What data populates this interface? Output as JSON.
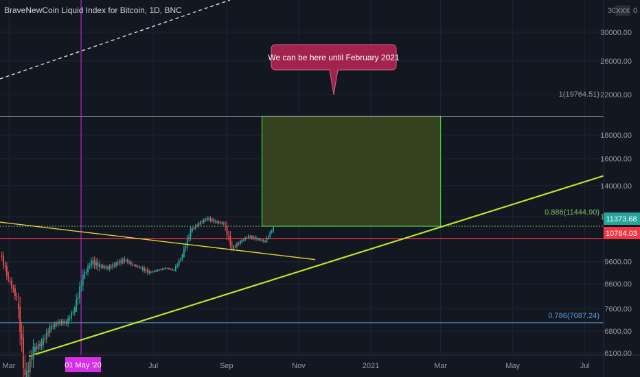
{
  "header": {
    "title": "BraveNewCoin Liquid Index for Bitcoin, 1D, BNC"
  },
  "price_axis": {
    "ticks": [
      "30000.00",
      "26000.00",
      "22000.00",
      "18000.00",
      "16000.00",
      "14000.00",
      "12000.00",
      "9600.00",
      "8600.00",
      "7600.00",
      "6800.00",
      "6100.00"
    ],
    "top_partial": "30",
    "xxx_badge": "XXX",
    "top_right_glyph": "0",
    "current_price": "11373.68",
    "support_price": "10764.03"
  },
  "time_axis": {
    "ticks": [
      "Mar",
      "Jul",
      "Sep",
      "Nov",
      "2021",
      "Mar",
      "May",
      "Jul"
    ],
    "cursor_label": "01 May '20"
  },
  "annotations": {
    "callout": "We can be here until February 2021",
    "fib_top": "1(19764.51)",
    "fib_886": "0.886(11444.90)",
    "fib_786": "0.786(7087.24)"
  },
  "colors": {
    "background": "#131722",
    "axis_bg": "#131722",
    "grid": "#1f2433",
    "up_candle": "#26a69a",
    "down_candle": "#ef5350",
    "trend_green": "#b6e82b",
    "trend_yellow": "#e6d43a",
    "box_fill": "#3c4a1f",
    "box_stroke": "#3ecf3a",
    "current_label_bg": "#26a69a",
    "support_label_bg": "#f23645",
    "fib_blue": "#5b9bd5",
    "fib_green": "#7cba66",
    "cursor": "#d630e6",
    "callout_bg": "#a3234f"
  },
  "chart_data": {
    "type": "candlestick",
    "symbol": "BraveNewCoin Liquid Index for Bitcoin",
    "interval": "1D",
    "x_range": [
      "2020-02-20",
      "2021-07-31"
    ],
    "y_log_scale": true,
    "y_ticks": [
      6100,
      6800,
      7600,
      8600,
      9600,
      12000,
      14000,
      16000,
      18000,
      22000,
      26000,
      30000
    ],
    "current_price": 11373.68,
    "horizontal_levels": [
      {
        "label": "1(19764.51)",
        "price": 19764.51,
        "color": "#b2b5be"
      },
      {
        "label": "0.886(11444.90)",
        "price": 11444.9,
        "color": "#7cba66"
      },
      {
        "label": "0.786(7087.24)",
        "price": 7087.24,
        "color": "#5b9bd5"
      },
      {
        "label": "10764.03",
        "price": 10764.03,
        "color": "#f23645"
      }
    ],
    "target_box": {
      "start": "2020-10-01",
      "end": "2021-03-01",
      "low": 11444.9,
      "high": 19764.51
    },
    "trend_lines": [
      {
        "color": "#b6e82b",
        "from": [
          "2020-03-18",
          6000
        ],
        "to": [
          "2021-07-31",
          14700
        ]
      },
      {
        "color": "#e6d43a",
        "from": [
          "2020-02-20",
          11700
        ],
        "to": [
          "2020-11-15",
          9700
        ]
      }
    ],
    "vertical_marker": {
      "date": "2020-05-01",
      "label": "01 May '20"
    },
    "ohlc_approx_weekly": [
      {
        "date": "2020-02-24",
        "open": 10000,
        "high": 10300,
        "low": 8600,
        "close": 8800
      },
      {
        "date": "2020-03-02",
        "open": 8800,
        "high": 9200,
        "low": 7800,
        "close": 8000
      },
      {
        "date": "2020-03-09",
        "open": 8000,
        "high": 8200,
        "low": 4800,
        "close": 5300
      },
      {
        "date": "2020-03-16",
        "open": 5300,
        "high": 6900,
        "low": 4900,
        "close": 6200
      },
      {
        "date": "2020-03-23",
        "open": 6200,
        "high": 6900,
        "low": 5900,
        "close": 6400
      },
      {
        "date": "2020-03-30",
        "open": 6400,
        "high": 7300,
        "low": 6200,
        "close": 6900
      },
      {
        "date": "2020-04-06",
        "open": 6900,
        "high": 7400,
        "low": 6700,
        "close": 7100
      },
      {
        "date": "2020-04-13",
        "open": 7100,
        "high": 7300,
        "low": 6600,
        "close": 7100
      },
      {
        "date": "2020-04-20",
        "open": 7100,
        "high": 7700,
        "low": 6800,
        "close": 7600
      },
      {
        "date": "2020-04-27",
        "open": 7600,
        "high": 9400,
        "low": 7500,
        "close": 8900
      },
      {
        "date": "2020-05-04",
        "open": 8900,
        "high": 10000,
        "low": 8800,
        "close": 9600
      },
      {
        "date": "2020-05-11",
        "open": 9600,
        "high": 9900,
        "low": 8300,
        "close": 9400
      },
      {
        "date": "2020-05-18",
        "open": 9400,
        "high": 9900,
        "low": 9200,
        "close": 9300
      },
      {
        "date": "2020-05-25",
        "open": 9300,
        "high": 9600,
        "low": 8700,
        "close": 9500
      },
      {
        "date": "2020-06-01",
        "open": 9500,
        "high": 10400,
        "low": 9400,
        "close": 9700
      },
      {
        "date": "2020-06-08",
        "open": 9700,
        "high": 9950,
        "low": 9250,
        "close": 9450
      },
      {
        "date": "2020-06-15",
        "open": 9450,
        "high": 9600,
        "low": 9200,
        "close": 9300
      },
      {
        "date": "2020-06-22",
        "open": 9300,
        "high": 9750,
        "low": 8900,
        "close": 9100
      },
      {
        "date": "2020-06-29",
        "open": 9100,
        "high": 9300,
        "low": 8950,
        "close": 9200
      },
      {
        "date": "2020-07-06",
        "open": 9200,
        "high": 9450,
        "low": 9150,
        "close": 9300
      },
      {
        "date": "2020-07-13",
        "open": 9300,
        "high": 9400,
        "low": 9100,
        "close": 9200
      },
      {
        "date": "2020-07-20",
        "open": 9200,
        "high": 10000,
        "low": 9150,
        "close": 9900
      },
      {
        "date": "2020-07-27",
        "open": 9900,
        "high": 11500,
        "low": 9900,
        "close": 11200
      },
      {
        "date": "2020-08-03",
        "open": 11200,
        "high": 11800,
        "low": 11000,
        "close": 11600
      },
      {
        "date": "2020-08-10",
        "open": 11600,
        "high": 12050,
        "low": 11200,
        "close": 11900
      },
      {
        "date": "2020-08-17",
        "open": 11900,
        "high": 12450,
        "low": 11500,
        "close": 11700
      },
      {
        "date": "2020-08-24",
        "open": 11700,
        "high": 11800,
        "low": 11150,
        "close": 11600
      },
      {
        "date": "2020-08-31",
        "open": 11600,
        "high": 12050,
        "low": 9900,
        "close": 10250
      },
      {
        "date": "2020-09-07",
        "open": 10250,
        "high": 10700,
        "low": 9900,
        "close": 10600
      },
      {
        "date": "2020-09-14",
        "open": 10600,
        "high": 11050,
        "low": 10450,
        "close": 10900
      },
      {
        "date": "2020-09-21",
        "open": 10900,
        "high": 10950,
        "low": 10150,
        "close": 10750
      },
      {
        "date": "2020-09-28",
        "open": 10750,
        "high": 10950,
        "low": 10450,
        "close": 10600
      },
      {
        "date": "2020-10-05",
        "open": 10600,
        "high": 11400,
        "low": 10550,
        "close": 11373.68
      }
    ]
  }
}
